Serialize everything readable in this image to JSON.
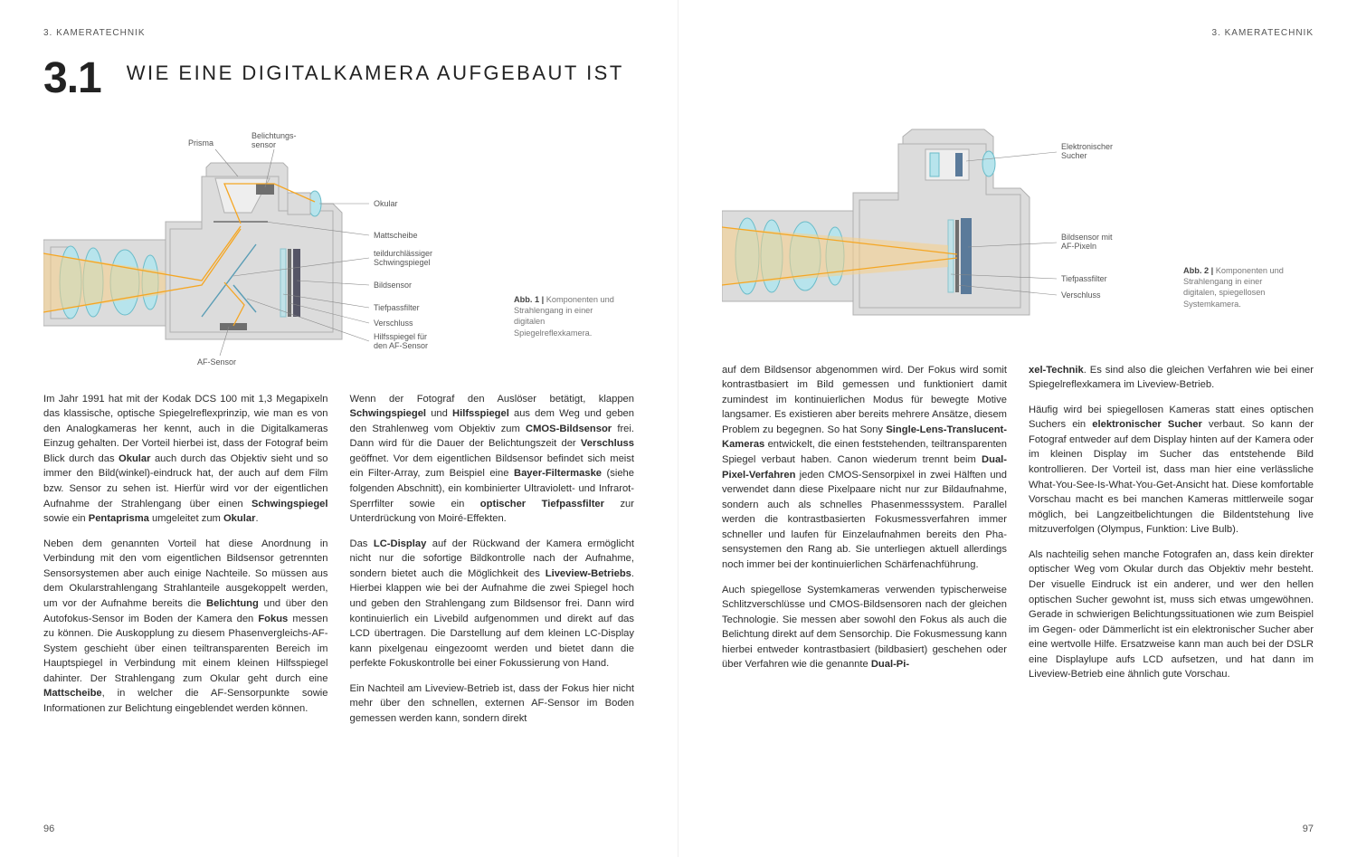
{
  "runningHead": "3. KAMERATECHNIK",
  "sectionNumber": "3.1",
  "sectionTitle": "WIE EINE DIGITALKAMERA AUFGEBAUT IST",
  "pageLeftNum": "96",
  "pageRightNum": "97",
  "fig1": {
    "captionBold": "Abb. 1 |",
    "captionText": "Komponenten und Strahlengang in einer digitalen Spiegelreflexkamera.",
    "labels": {
      "prisma": "Prisma",
      "belichtung": "Belichtungs-\nsensor",
      "okular": "Okular",
      "mattscheibe": "Mattscheibe",
      "schwingspiegel": "teildurchlässiger Schwingspiegel",
      "bildsensor": "Bildsensor",
      "tiefpass": "Tiefpassfilter",
      "verschluss": "Verschluss",
      "afsensor": "AF-Sensor",
      "hilfsspiegel": "Hilfsspiegel für den AF-Sensor"
    }
  },
  "fig2": {
    "captionBold": "Abb. 2 |",
    "captionText": "Komponenten und Strahlengang in einer digitalen, spiegellosen Systemkamera.",
    "labels": {
      "sucher": "Elektronischer Sucher",
      "bildsensor": "Bildsensor mit AF-Pixeln",
      "tiefpass": "Tiefpassfilter",
      "verschluss": "Verschluss"
    }
  },
  "colors": {
    "body": "#dcdcdc",
    "bodyStroke": "#b0b0b0",
    "glass": "#b7e4ec",
    "glassStroke": "#6bbcc9",
    "ray": "#f5a623",
    "rayFill": "#f8cf88",
    "dark": "#6e6e6e"
  },
  "left": {
    "c1p1": "Im Jahr 1991 hat mit der Kodak DCS 100 mit 1,3 Mega­pixeln das klassische, optische Spiegel­reflex­prinzip, wie man es von den Analog­kameras her kennt, auch in die Digital­kameras Einzug gehalten. Der Vorteil hierbei ist, dass der Fotograf beim Blick durch das <b>Okular</b> auch durch das Objektiv sieht und so immer den Bild(winkel)-eindruck hat, der auch auf dem Film bzw. Sensor zu sehen ist. Hierfür wird vor der eigentlichen Aufnahme der Strahlengang über einen <b>Schwingspiegel</b> sowie ein <b>Pentaprisma</b> umgeleitet zum <b>Okular</b>.",
    "c1p2": "Neben dem genannten Vorteil hat diese Anordnung in Verbindung mit den vom eigentlichen Bildsensor getrennten Sensor­systemen aber auch einige Nach­teile. So müssen aus dem Okular­strahlengang Strahl­anteile ausgekoppelt werden, um vor der Auf­nahme bereits die <b>Belichtung</b> und über den Auto­fokus-Sensor im Boden der Kamera den <b>Fokus</b> messen zu können. Die Aus­kopplung zu diesem Phasen­vergleichs-AF-System geschieht über einen teiltrans­parenten Bereich im Haupt­spiegel in Verbindung mit einem kleinen Hilfsspiegel dahinter. Der Strahlen­gang zum Okular geht durch eine <b>Mattscheibe</b>, in welcher die AF-Sensorpunkte sowie Informationen zur Belichtung eingeblendet werden können.",
    "c2p1": "Wenn der Fotograf den Auslöser betätigt, klappen <b>Schwingspiegel</b> und <b>Hilfsspiegel</b> aus dem Weg und geben den Strahlenweg vom Objektiv zum <b>CMOS-Bildsensor</b> frei. Dann wird für die Dauer der Belichtungszeit der <b>Verschluss</b> geöffnet. Vor dem ei­gentlichen Bildsensor befindet sich meist ein Filter-Array, zum Beispiel eine <b>Bayer-Filtermaske</b> (siehe folgenden Abschnitt), ein kombinierter Ultraviolett- und Infrarot-Sperrfilter sowie ein <b>optischer Tiefpass­filter</b> zur Unterdrückung von Moiré-Effekten.",
    "c2p2": "Das <b>LC-Display</b> auf der Rückwand der Kamera ermög­licht nicht nur die sofortige Bildkontrolle nach der Auf­nahme, sondern bietet auch die Möglichkeit des <b>Liveview-Betriebs</b>. Hierbei klappen wie bei der Aufnah­me die zwei Spiegel hoch und geben den Strahlengang zum Bildsensor frei. Dann wird kontinuierlich ein Livebild aufgenommen und direkt auf das LCD übertragen. Die Darstellung auf dem kleinen LC-Display kann pixelgenau eingezoomt werden und bietet dann die perfekte Fokus­kontrolle bei einer Fokussierung von Hand.",
    "c2p3": "Ein Nachteil am Liveview-Betrieb ist, dass der Fokus hier nicht mehr über den schnellen, externen AF-Sen­sor im Boden gemessen werden kann, sondern direkt"
  },
  "right": {
    "c1p1": "auf dem Bildsensor abgenommen wird. Der Fokus wird somit kontrast­basiert im Bild gemessen und funktioniert damit zumindest im kontinuierlichen Modus für bewegte Motive langsamer. Es existieren aber bereits mehrere Ansätze, diesem Problem zu be­gegnen. So hat Sony <b>Single-Lens-Translucent-Ka­meras</b> entwickelt, die einen fest­stehenden, teiltrans­parenten Spiegel verbaut haben. Canon wiederum trennt beim <b>Dual-Pixel-Verfahren</b> jeden CMOS-Sen­sorpixel in zwei Hälften und verwendet dann diese Pixelpaare nicht nur zur Bildaufnahme, sondern auch als schnelles Phasen­mess­system. Parallel werden die kontrast­basierten Fokus­messverfahren immer schnel­ler und laufen für Einzelaufnahmen bereits den Pha­sensystemen den Rang ab. Sie unterliegen aktuell al­lerdings noch immer bei der kontinuierlichen Schärfe­nachführung.",
    "c1p2": "Auch spiegellose Systemkameras verwenden typi­scherweise Schlitz­verschlüsse und CMOS-Bildsenso­ren nach der gleichen Technologie. Sie messen aber sowohl den Fokus als auch die Belichtung direkt auf dem Sensorchip. Die Fokus­messung kann hierbei entweder kontrast­basiert (bildbasiert) geschehen oder über Verfahren wie die genannte <b>Dual-Pi-</b>",
    "c2p1": "<b>xel-Technik</b>. Es sind also die gleichen Verfahren wie bei einer Spiegel­reflex­kamera im Liveview-Betrieb.",
    "c2p2": "Häufig wird bei spiegel­losen Kameras statt eines opti­schen Suchers ein <b>elektronischer Sucher</b> verbaut. So kann der Fotograf entweder auf dem Display hinten auf der Kamera oder im kleinen Display im Sucher das entstehende Bild kontrollieren. Der Vorteil ist, dass man hier eine verlässliche What-You-See-Is-What-You-Get-Ansicht hat. Diese komfortable Vorschau macht es bei manchen Kameras mittlerweile sogar möglich, bei Langzeit­belichtungen die Bild­entstehung live mitzu­verfolgen (Olympus, Funktion: Live Bulb).",
    "c2p3": "Als nachteilig sehen manche Fotografen an, dass kein direkter optischer Weg vom Okular durch das Objek­tiv mehr besteht. Der visuelle Eindruck ist ein anderer, und wer den hellen optischen Sucher gewohnt ist, muss sich etwas umgewöhnen. Gerade in schwie­rigen Belichtungs­situationen wie zum Beispiel im Ge­gen- oder Dämmer­licht ist ein elektronischer Sucher aber eine wertvolle Hilfe. Ersatzweise kann man auch bei der DSLR eine Displaylupe aufs LCD aufsetzen, und hat dann im Liveview-Betrieb eine ähnlich gute Vorschau."
  }
}
